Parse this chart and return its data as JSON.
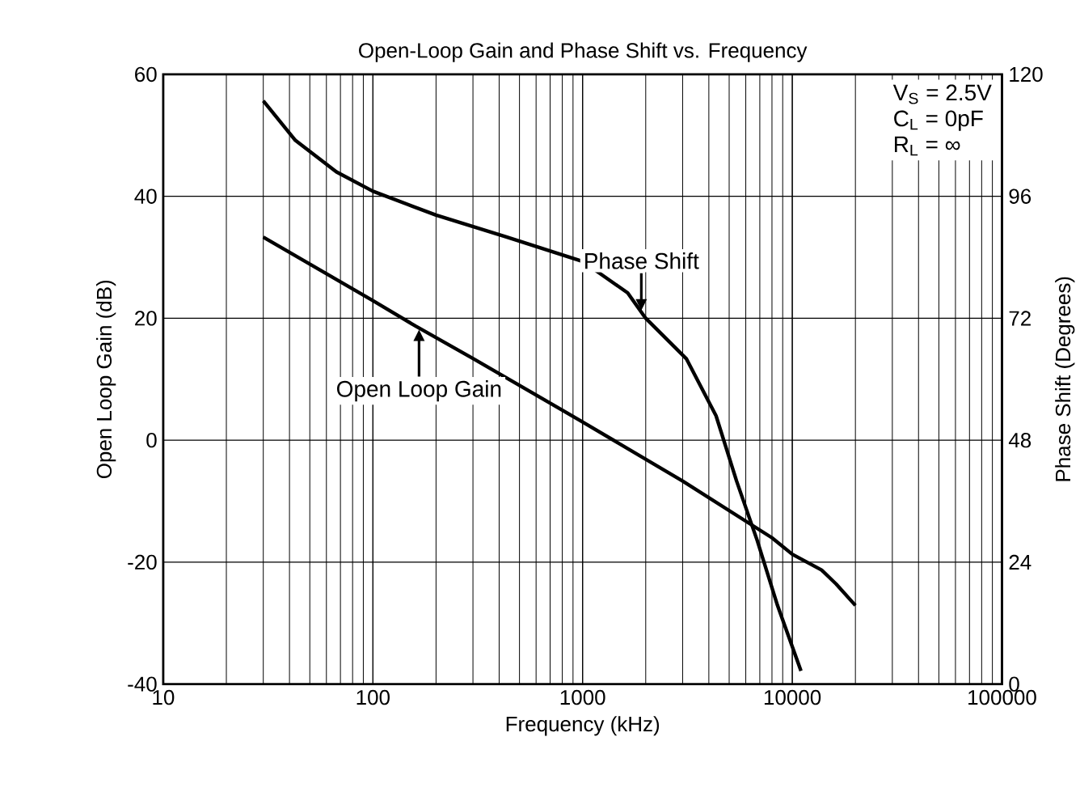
{
  "chart_data": {
    "type": "line",
    "title": "Open-Loop Gain and Phase Shift vs. Frequency",
    "xlabel": "Frequency (kHz)",
    "ylabel": "Open Loop Gain (dB)",
    "y2label": "Phase Shift (Degrees)",
    "log": "x",
    "grid": true,
    "xlim": [
      10,
      100000
    ],
    "xticks": [
      10,
      100,
      1000,
      10000,
      100000
    ],
    "ylim": [
      -40,
      60
    ],
    "yticks": [
      -40,
      -20,
      0,
      20,
      40,
      60
    ],
    "y2lim": [
      0,
      120
    ],
    "y2ticks": [
      0,
      24,
      48,
      72,
      96,
      120
    ],
    "annotations": [
      "V$_{S}$ = 2.5V",
      "C$_{L}$ = 0pF",
      "R$_{L}$ = ∞"
    ],
    "series": [
      {
        "name": "Open Loop Gain",
        "color": "#000000",
        "x": [
          30,
          100,
          160,
          300,
          1000,
          3000,
          8000,
          10000,
          13800,
          16200,
          20000
        ],
        "values": [
          33.3,
          22.9,
          18.7,
          13.4,
          3,
          -6.7,
          -16,
          -18.7,
          -21.3,
          -23.6,
          -27.1
        ]
      },
      {
        "name": "Phase Shift",
        "color": "#000000",
        "axis": "y2",
        "x": [
          30,
          42.7,
          67,
          100,
          200,
          433,
          1000,
          1640,
          2000,
          3130,
          4330,
          5420,
          6800,
          8500,
          11000
        ],
        "values": [
          114.8,
          107,
          100.8,
          97,
          92.3,
          88,
          83.2,
          77,
          72,
          64,
          52.8,
          40,
          28.3,
          15.5,
          2.6
        ]
      }
    ]
  }
}
